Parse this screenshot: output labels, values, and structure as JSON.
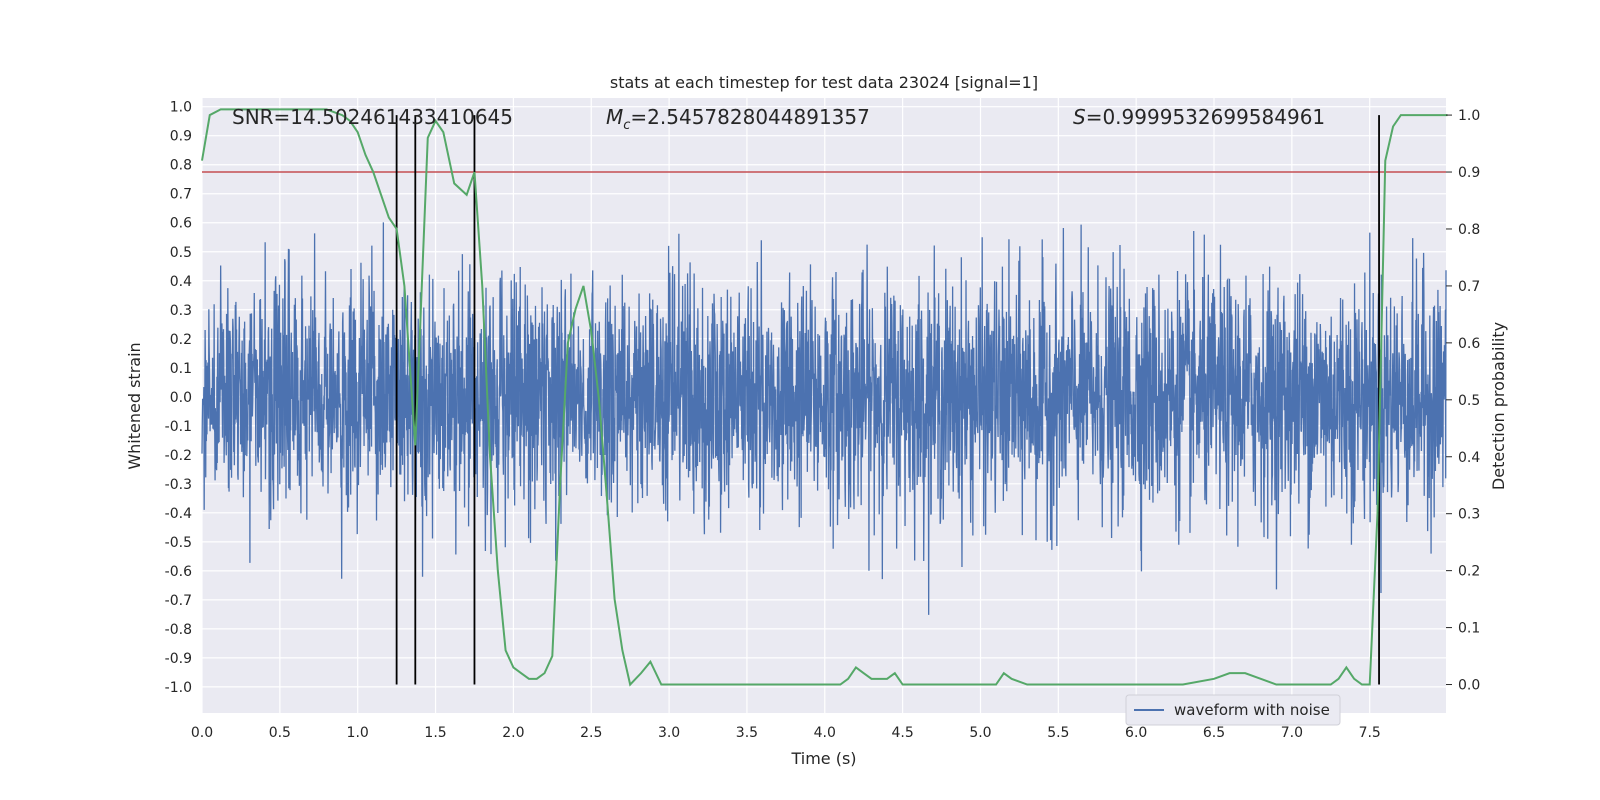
{
  "chart_data": {
    "type": "line",
    "title": "stats at each timestep for test data 23024 [signal=1]",
    "xlabel": "Time (s)",
    "ylabel_left": "Whitened strain",
    "ylabel_right": "Detection probability",
    "xlim": [
      0.0,
      7.99
    ],
    "ylim_left": [
      -1.09,
      1.03
    ],
    "ylim_right": [
      -0.05,
      1.03
    ],
    "x_ticks": [
      "0.0",
      "0.5",
      "1.0",
      "1.5",
      "2.0",
      "2.5",
      "3.0",
      "3.5",
      "4.0",
      "4.5",
      "5.0",
      "5.5",
      "6.0",
      "6.5",
      "7.0",
      "7.5"
    ],
    "x_tick_values": [
      0.0,
      0.5,
      1.0,
      1.5,
      2.0,
      2.5,
      3.0,
      3.5,
      4.0,
      4.5,
      5.0,
      5.5,
      6.0,
      6.5,
      7.0,
      7.5
    ],
    "left_ticks": [
      "1.0",
      "0.9",
      "0.8",
      "0.7",
      "0.6",
      "0.5",
      "0.4",
      "0.3",
      "0.2",
      "0.1",
      "0.0",
      "-0.1",
      "-0.2",
      "-0.3",
      "-0.4",
      "-0.5",
      "-0.6",
      "-0.7",
      "-0.8",
      "-0.9",
      "-1.0"
    ],
    "left_tick_values": [
      1.0,
      0.9,
      0.8,
      0.7,
      0.6,
      0.5,
      0.4,
      0.3,
      0.2,
      0.1,
      0.0,
      -0.1,
      -0.2,
      -0.3,
      -0.4,
      -0.5,
      -0.6,
      -0.7,
      -0.8,
      -0.9,
      -1.0
    ],
    "right_ticks": [
      "1.0",
      "0.9",
      "0.8",
      "0.7",
      "0.6",
      "0.5",
      "0.4",
      "0.3",
      "0.2",
      "0.1",
      "0.0"
    ],
    "right_tick_values": [
      1.0,
      0.9,
      0.8,
      0.7,
      0.6,
      0.5,
      0.4,
      0.3,
      0.2,
      0.1,
      0.0
    ],
    "threshold": 0.9,
    "vlines": [
      1.25,
      1.37,
      1.75,
      7.56
    ],
    "annotations": {
      "snr": "SNR=14.502461433410645",
      "mc_symbol": "M",
      "mc_sub": "c",
      "mc_value": "=2.5457828044891357",
      "s_symbol": "S",
      "s_value": "=0.9999532699584961"
    },
    "legend": {
      "label": "waveform with noise",
      "placement": "lower-right"
    },
    "series": [
      {
        "name": "detection probability",
        "axis": "right",
        "x": [
          0.0,
          0.05,
          0.12,
          0.2,
          0.3,
          0.5,
          0.7,
          0.8,
          0.9,
          0.95,
          1.0,
          1.05,
          1.1,
          1.15,
          1.2,
          1.25,
          1.3,
          1.37,
          1.4,
          1.45,
          1.5,
          1.55,
          1.62,
          1.7,
          1.75,
          1.8,
          1.85,
          1.9,
          1.95,
          2.0,
          2.05,
          2.1,
          2.15,
          2.2,
          2.25,
          2.3,
          2.35,
          2.4,
          2.45,
          2.5,
          2.55,
          2.6,
          2.65,
          2.7,
          2.75,
          2.82,
          2.88,
          2.95,
          3.0,
          3.1,
          3.3,
          3.5,
          3.6,
          3.7,
          3.8,
          3.9,
          4.0,
          4.1,
          4.15,
          4.2,
          4.25,
          4.3,
          4.35,
          4.4,
          4.45,
          4.5,
          4.6,
          4.7,
          4.8,
          4.9,
          5.0,
          5.05,
          5.1,
          5.15,
          5.2,
          5.3,
          5.5,
          5.7,
          6.0,
          6.3,
          6.5,
          6.6,
          6.7,
          6.8,
          6.9,
          7.0,
          7.1,
          7.2,
          7.25,
          7.3,
          7.35,
          7.4,
          7.45,
          7.5,
          7.55,
          7.6,
          7.65,
          7.7,
          7.8,
          8.0
        ],
        "y": [
          0.92,
          1.0,
          1.01,
          1.01,
          1.01,
          1.01,
          1.01,
          1.01,
          1.0,
          0.99,
          0.97,
          0.93,
          0.9,
          0.86,
          0.82,
          0.8,
          0.7,
          0.42,
          0.62,
          0.96,
          0.99,
          0.97,
          0.88,
          0.86,
          0.9,
          0.7,
          0.4,
          0.2,
          0.06,
          0.03,
          0.02,
          0.01,
          0.01,
          0.02,
          0.05,
          0.35,
          0.6,
          0.66,
          0.7,
          0.62,
          0.5,
          0.33,
          0.15,
          0.06,
          0.0,
          0.02,
          0.04,
          0.0,
          0.0,
          0.0,
          0.0,
          0.0,
          0.0,
          0.0,
          0.0,
          0.0,
          0.0,
          0.0,
          0.01,
          0.03,
          0.02,
          0.01,
          0.01,
          0.01,
          0.02,
          0.0,
          0.0,
          0.0,
          0.0,
          0.0,
          0.0,
          0.0,
          0.0,
          0.02,
          0.01,
          0.0,
          0.0,
          0.0,
          0.0,
          0.0,
          0.01,
          0.02,
          0.02,
          0.01,
          0.0,
          0.0,
          0.0,
          0.0,
          0.0,
          0.01,
          0.03,
          0.01,
          0.0,
          0.0,
          0.3,
          0.92,
          0.98,
          1.0,
          1.0,
          1.0
        ]
      }
    ]
  }
}
